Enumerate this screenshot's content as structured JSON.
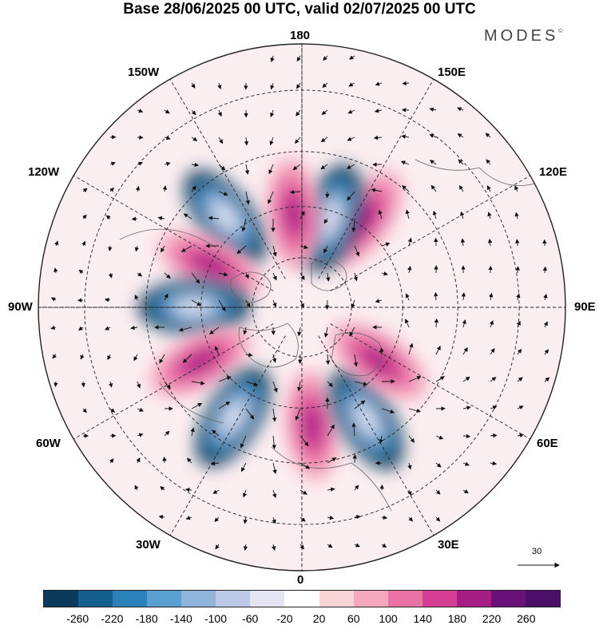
{
  "header": {
    "title": "Base 28/06/2025 00 UTC, valid 02/07/2025 00 UTC",
    "brand": "MODES",
    "brand_mark": "©"
  },
  "map": {
    "projection": "north-polar-stereographic",
    "longitude_labels": {
      "top": "180",
      "bottom": "0",
      "left": "90W",
      "right": "90E",
      "upper_left_1": "150W",
      "upper_left_2": "120W",
      "lower_left_1": "60W",
      "lower_left_2": "30W",
      "upper_right_1": "150E",
      "upper_right_2": "120E",
      "lower_right_1": "60E",
      "lower_right_2": "30E"
    },
    "reference_vector_label": "30",
    "anomaly_centers": [
      {
        "lon": -140,
        "lat": 55,
        "sign": "negative"
      },
      {
        "lon": -115,
        "lat": 60,
        "sign": "positive"
      },
      {
        "lon": -90,
        "lat": 58,
        "sign": "negative"
      },
      {
        "lon": -62,
        "lat": 56,
        "sign": "positive"
      },
      {
        "lon": -32,
        "lat": 52,
        "sign": "negative"
      },
      {
        "lon": 5,
        "lat": 55,
        "sign": "positive"
      },
      {
        "lon": 30,
        "lat": 52,
        "sign": "negative"
      },
      {
        "lon": 55,
        "lat": 62,
        "sign": "positive"
      },
      {
        "lon": 145,
        "lat": 58,
        "sign": "positive"
      },
      {
        "lon": 162,
        "lat": 62,
        "sign": "negative"
      },
      {
        "lon": -175,
        "lat": 62,
        "sign": "positive"
      }
    ]
  },
  "colorbar": {
    "ticks": [
      "-260",
      "-220",
      "-180",
      "-140",
      "-100",
      "-60",
      "-20",
      "20",
      "60",
      "100",
      "140",
      "180",
      "220",
      "260"
    ],
    "colors": [
      "#0c3a5a",
      "#155f8f",
      "#2a82b8",
      "#5a9fcf",
      "#8fb6da",
      "#bcc9e6",
      "#e4e4f2",
      "#ffffff",
      "#f9d4d6",
      "#f4a7bd",
      "#ea73a6",
      "#d43f93",
      "#a61e83",
      "#6a1179",
      "#4b0f6a"
    ]
  }
}
